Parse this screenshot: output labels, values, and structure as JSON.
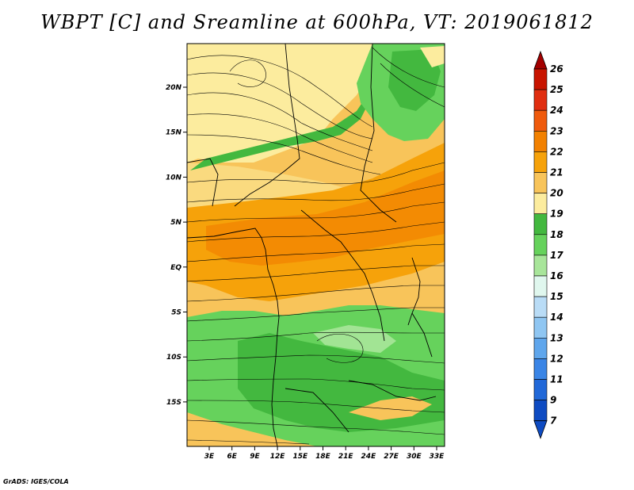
{
  "title": "WBPT [C] and Sreamline at 600hPa, VT: 2019061812",
  "footer": "GrADS: IGES/COLA",
  "map": {
    "variable": "WBPT",
    "units": "C",
    "level": "600hPa",
    "valid_time": "2019061812",
    "lon_range": [
      0,
      35
    ],
    "lat_range": [
      -20,
      25
    ],
    "x_ticks": [
      "3E",
      "6E",
      "9E",
      "12E",
      "15E",
      "18E",
      "21E",
      "24E",
      "27E",
      "30E",
      "33E"
    ],
    "y_ticks": [
      "20N",
      "15N",
      "10N",
      "5N",
      "EQ",
      "5S",
      "10S",
      "15S"
    ]
  },
  "colorbar": {
    "levels": [
      "26",
      "25",
      "24",
      "23",
      "22",
      "21",
      "20",
      "19",
      "18",
      "17",
      "16",
      "15",
      "14",
      "13",
      "12",
      "11",
      "9",
      "7"
    ],
    "colors": {
      "c26": "#a30000",
      "c25": "#c81400",
      "c24": "#e02e10",
      "c23": "#ef5a0c",
      "c22": "#f28100",
      "c21": "#f6a20a",
      "c20": "#f8c45a",
      "c19": "#fcec9e",
      "c18": "#43b83f",
      "c17": "#66d25c",
      "c16": "#a8e59a",
      "c15": "#e0f7ee",
      "c14": "#b9dcf6",
      "c13": "#8fc6f2",
      "c12": "#5fa6ec",
      "c11": "#3a85e6",
      "c9": "#2168d8",
      "c7": "#0e4bc2"
    }
  }
}
